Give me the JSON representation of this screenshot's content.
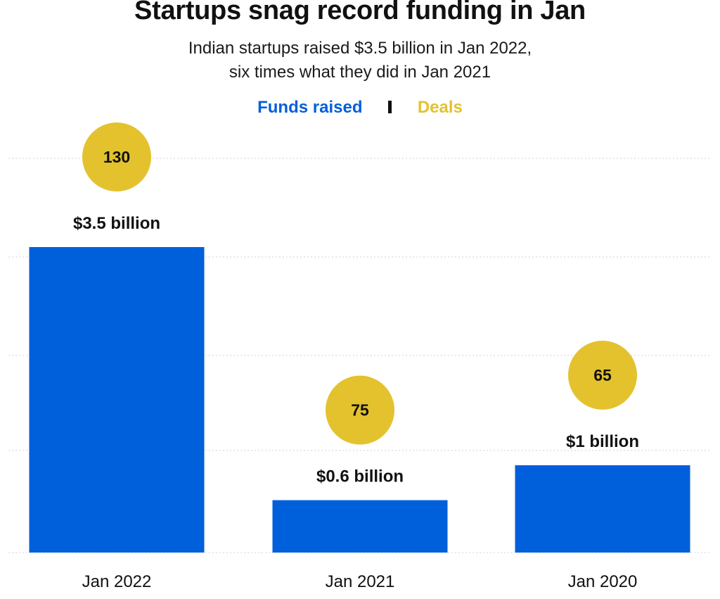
{
  "title": "Startups snag record funding in Jan",
  "subtitle_line1": "Indian startups raised $3.5 billion in Jan 2022,",
  "subtitle_line2": "six times what they did in Jan 2021",
  "legend": {
    "funds": "Funds raised",
    "deals": "Deals"
  },
  "colors": {
    "funds": "#005fdb",
    "deals": "#e3c22e",
    "grid": "#d0d0d0",
    "text": "#111111"
  },
  "chart_data": {
    "type": "bar",
    "categories": [
      "Jan 2022",
      "Jan 2021",
      "Jan 2020"
    ],
    "series": [
      {
        "name": "Funds raised",
        "values": [
          3.5,
          0.6,
          1
        ],
        "labels": [
          "$3.5 billion",
          "$0.6 billion",
          "$1 billion"
        ]
      },
      {
        "name": "Deals",
        "values": [
          130,
          75,
          65
        ],
        "labels": [
          "130",
          "75",
          "65"
        ]
      }
    ],
    "grid": true,
    "legend_position": "top-center"
  }
}
